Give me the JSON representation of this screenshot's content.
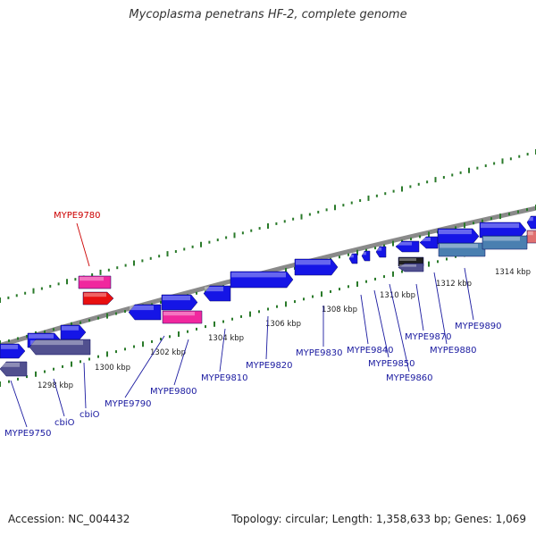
{
  "title": "Mycoplasma penetrans HF-2, complete genome",
  "footer": {
    "accession": "Accession: NC_004432",
    "topology": "Topology: circular; Length: 1,358,633 bp; Genes: 1,069"
  },
  "colors": {
    "backbone": "#8a8a8a",
    "cds": "#1515e6",
    "pink": "#f0289e",
    "red": "#e81010",
    "navy": "#51508f",
    "steel": "#4a7fb0",
    "tick": "#2a7a2a",
    "label_blue": "#1a1aa0",
    "label_red": "#cc0000"
  },
  "ticks": [
    {
      "label": "1298 kbp"
    },
    {
      "label": "1300 kbp"
    },
    {
      "label": "1302 kbp"
    },
    {
      "label": "1304 kbp"
    },
    {
      "label": "1306 kbp"
    },
    {
      "label": "1308 kbp"
    },
    {
      "label": "1310 kbp"
    },
    {
      "label": "1312 kbp"
    },
    {
      "label": "1314 kbp"
    }
  ],
  "gene_labels": [
    {
      "text": "MYPE9780",
      "color": "red"
    },
    {
      "text": "MYPE9750",
      "color": "blue"
    },
    {
      "text": "cbiO",
      "color": "blue"
    },
    {
      "text": "cbiO",
      "color": "blue"
    },
    {
      "text": "MYPE9790",
      "color": "blue"
    },
    {
      "text": "MYPE9800",
      "color": "blue"
    },
    {
      "text": "MYPE9810",
      "color": "blue"
    },
    {
      "text": "MYPE9820",
      "color": "blue"
    },
    {
      "text": "MYPE9830",
      "color": "blue"
    },
    {
      "text": "MYPE9840",
      "color": "blue"
    },
    {
      "text": "MYPE9850",
      "color": "blue"
    },
    {
      "text": "MYPE9860",
      "color": "blue"
    },
    {
      "text": "MYPE9870",
      "color": "blue"
    },
    {
      "text": "MYPE9880",
      "color": "blue"
    },
    {
      "text": "MYPE9890",
      "color": "blue"
    }
  ]
}
